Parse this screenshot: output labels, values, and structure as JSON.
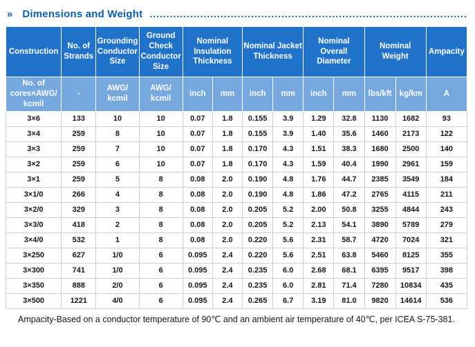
{
  "header": {
    "marker": "»",
    "title": "Dimensions and Weight",
    "leader": "......................................................................................................................................................."
  },
  "colors": {
    "header_dark": "#2173c9",
    "header_light": "#76a7dd",
    "title_blue": "#0e5cad",
    "cell_border": "#c9cfd6"
  },
  "table": {
    "groups": [
      {
        "label": "Construction",
        "colspan": 1
      },
      {
        "label": "No. of Strands",
        "colspan": 1
      },
      {
        "label": "Grounding Conductor Size",
        "colspan": 1
      },
      {
        "label": "Ground Check Conductor Size",
        "colspan": 1
      },
      {
        "label": "Nominal Insulation Thickness",
        "colspan": 2
      },
      {
        "label": "Nominal Jacket Thickness",
        "colspan": 2
      },
      {
        "label": "Nominal Overall Diameter",
        "colspan": 2
      },
      {
        "label": "Nominal Weight",
        "colspan": 2
      },
      {
        "label": "Ampacity",
        "colspan": 1
      }
    ],
    "units": [
      "No. of cores×AWG/ kcmil",
      "-",
      "AWG/ kcmil",
      "AWG/ kcmil",
      "inch",
      "mm",
      "inch",
      "mm",
      "inch",
      "mm",
      "lbs/kft",
      "kg/km",
      "A"
    ],
    "rows": [
      [
        "3×6",
        "133",
        "10",
        "10",
        "0.07",
        "1.8",
        "0.155",
        "3.9",
        "1.29",
        "32.8",
        "1130",
        "1682",
        "93"
      ],
      [
        "3×4",
        "259",
        "8",
        "10",
        "0.07",
        "1.8",
        "0.155",
        "3.9",
        "1.40",
        "35.6",
        "1460",
        "2173",
        "122"
      ],
      [
        "3×3",
        "259",
        "7",
        "10",
        "0.07",
        "1.8",
        "0.170",
        "4.3",
        "1.51",
        "38.3",
        "1680",
        "2500",
        "140"
      ],
      [
        "3×2",
        "259",
        "6",
        "10",
        "0.07",
        "1.8",
        "0.170",
        "4.3",
        "1.59",
        "40.4",
        "1990",
        "2961",
        "159"
      ],
      [
        "3×1",
        "259",
        "5",
        "8",
        "0.08",
        "2.0",
        "0.190",
        "4.8",
        "1.76",
        "44.7",
        "2385",
        "3549",
        "184"
      ],
      [
        "3×1/0",
        "266",
        "4",
        "8",
        "0.08",
        "2.0",
        "0.190",
        "4.8",
        "1.86",
        "47.2",
        "2765",
        "4115",
        "211"
      ],
      [
        "3×2/0",
        "329",
        "3",
        "8",
        "0.08",
        "2.0",
        "0.205",
        "5.2",
        "2.00",
        "50.8",
        "3255",
        "4844",
        "243"
      ],
      [
        "3×3/0",
        "418",
        "2",
        "8",
        "0.08",
        "2.0",
        "0.205",
        "5.2",
        "2.13",
        "54.1",
        "3890",
        "5789",
        "279"
      ],
      [
        "3×4/0",
        "532",
        "1",
        "8",
        "0.08",
        "2.0",
        "0.220",
        "5.6",
        "2.31",
        "58.7",
        "4720",
        "7024",
        "321"
      ],
      [
        "3×250",
        "627",
        "1/0",
        "6",
        "0.095",
        "2.4",
        "0.220",
        "5.6",
        "2.51",
        "63.8",
        "5460",
        "8125",
        "355"
      ],
      [
        "3×300",
        "741",
        "1/0",
        "6",
        "0.095",
        "2.4",
        "0.235",
        "6.0",
        "2.68",
        "68.1",
        "6395",
        "9517",
        "398"
      ],
      [
        "3×350",
        "888",
        "2/0",
        "6",
        "0.095",
        "2.4",
        "0.235",
        "6.0",
        "2.81",
        "71.4",
        "7280",
        "10834",
        "435"
      ],
      [
        "3×500",
        "1221",
        "4/0",
        "6",
        "0.095",
        "2.4",
        "0.265",
        "6.7",
        "3.19",
        "81.0",
        "9820",
        "14614",
        "536"
      ]
    ]
  },
  "footnote": "Ampacity-Based on a conductor temperature of 90℃ and an ambient air temperature of 40℃, per ICEA S-75-381."
}
